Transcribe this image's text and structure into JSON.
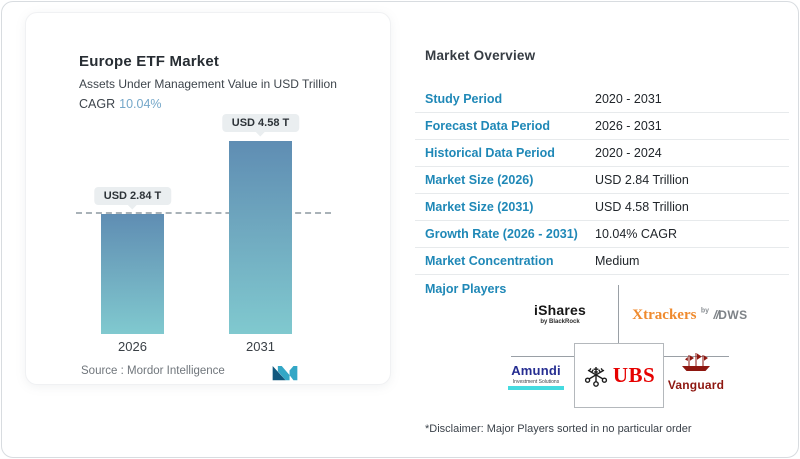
{
  "chart_card": {
    "title": "Europe ETF Market",
    "subtitle": "Assets Under Management Value in USD Trillion",
    "cagr_label": "CAGR",
    "cagr_value": "10.04%",
    "source_label": "Source :",
    "source_value": "Mordor Intelligence"
  },
  "chart_data": {
    "type": "bar",
    "categories": [
      "2026",
      "2031"
    ],
    "values": [
      2.84,
      4.58
    ],
    "value_labels": [
      "USD 2.84 T",
      "USD 4.58 T"
    ],
    "title": "Europe ETF Market",
    "ylabel": "Assets Under Management Value in USD Trillion",
    "ylim": [
      0,
      4.58
    ],
    "grid": false,
    "reference_line": {
      "y": 2.84,
      "style": "dashed"
    },
    "bar_gradient_top": "#5f8db3",
    "bar_gradient_bottom": "#80c9cf"
  },
  "overview": {
    "heading": "Market Overview",
    "rows": [
      {
        "label": "Study Period",
        "value": "2020 - 2031"
      },
      {
        "label": "Forecast Data Period",
        "value": "2026 - 2031"
      },
      {
        "label": "Historical Data Period",
        "value": "2020 - 2024"
      },
      {
        "label": "Market Size (2026)",
        "value": "USD 2.84 Trillion"
      },
      {
        "label": "Market Size (2031)",
        "value": "USD 4.58 Trillion"
      },
      {
        "label": "Growth Rate (2026 - 2031)",
        "value": "10.04% CAGR"
      },
      {
        "label": "Market Concentration",
        "value": "Medium"
      }
    ],
    "major_players_label": "Major Players",
    "logos": {
      "ishares": {
        "name": "iShares",
        "tagline": "by BlackRock"
      },
      "xtrackers": {
        "name": "Xtrackers",
        "by": "by",
        "slashes": "//",
        "dws": "DWS"
      },
      "amundi": {
        "name": "Amundi",
        "tagline": "Investment Solutions"
      },
      "ubs": {
        "name": "UBS"
      },
      "vanguard": {
        "name": "Vanguard"
      }
    },
    "disclaimer": "*Disclaimer: Major Players sorted in no particular order"
  },
  "colors": {
    "accent_blue": "#1f88b7",
    "cagr_blue": "#74a7c9",
    "bar_top": "#5f8db3",
    "bar_bottom": "#80c9cf",
    "ubs_red": "#e60100",
    "xtrackers_orange": "#ef8a2d",
    "amundi_navy": "#252d91",
    "amundi_cyan": "#45dbe0",
    "vanguard_maroon": "#8e1710"
  }
}
